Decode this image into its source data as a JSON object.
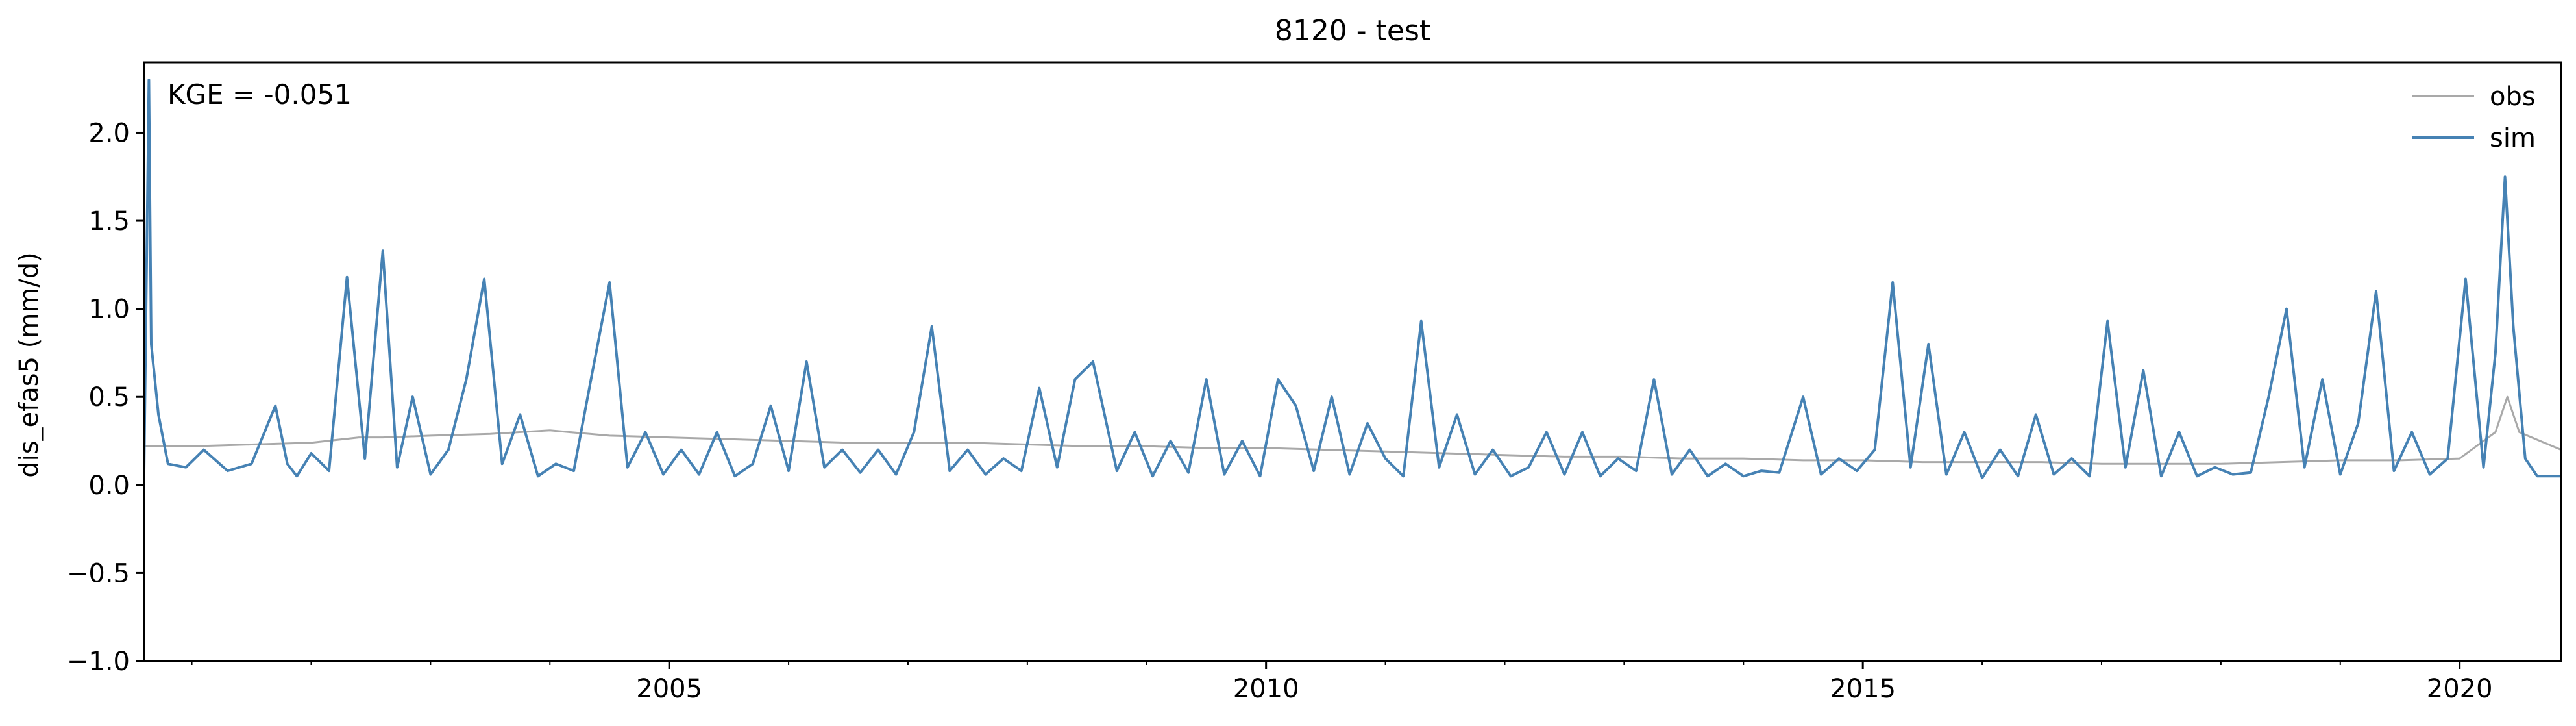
{
  "chart_data": {
    "type": "line",
    "title": "8120 - test",
    "xlabel": "",
    "ylabel": "dis_efas5 (mm/d)",
    "xlim": [
      2000.6,
      2020.85
    ],
    "ylim": [
      -1.0,
      2.4
    ],
    "x_ticks": [
      2005,
      2010,
      2015,
      2020
    ],
    "y_ticks": [
      -1.0,
      -0.5,
      0.0,
      0.5,
      1.0,
      1.5,
      2.0
    ],
    "y_tick_labels": [
      "−1.0",
      "−0.5",
      "0.0",
      "0.5",
      "1.0",
      "1.5",
      "2.0"
    ],
    "annotation": "KGE = -0.051",
    "legend": {
      "position": "top-right"
    },
    "grid": false,
    "series": [
      {
        "name": "obs",
        "color": "#a9a9a9",
        "x": [
          2000.6,
          2001.0,
          2001.5,
          2002.0,
          2002.4,
          2002.6,
          2003.0,
          2003.5,
          2004.0,
          2004.5,
          2005.0,
          2005.5,
          2006.0,
          2006.5,
          2007.0,
          2007.5,
          2008.0,
          2008.5,
          2009.0,
          2009.5,
          2010.0,
          2010.5,
          2011.0,
          2011.5,
          2012.0,
          2012.5,
          2013.0,
          2013.5,
          2014.0,
          2014.5,
          2015.0,
          2015.5,
          2016.0,
          2016.5,
          2017.0,
          2017.5,
          2018.0,
          2018.5,
          2019.0,
          2019.5,
          2020.0,
          2020.3,
          2020.4,
          2020.5,
          2020.85
        ],
        "values": [
          0.22,
          0.22,
          0.23,
          0.24,
          0.27,
          0.27,
          0.28,
          0.29,
          0.31,
          0.28,
          0.27,
          0.26,
          0.25,
          0.24,
          0.24,
          0.24,
          0.23,
          0.22,
          0.22,
          0.21,
          0.21,
          0.2,
          0.19,
          0.18,
          0.17,
          0.16,
          0.16,
          0.15,
          0.15,
          0.14,
          0.14,
          0.13,
          0.13,
          0.13,
          0.12,
          0.12,
          0.12,
          0.13,
          0.14,
          0.14,
          0.15,
          0.3,
          0.5,
          0.3,
          0.2
        ]
      },
      {
        "name": "sim",
        "color": "#4682b4",
        "x": [
          2000.6,
          2000.64,
          2000.66,
          2000.72,
          2000.8,
          2000.95,
          2001.1,
          2001.3,
          2001.5,
          2001.7,
          2001.8,
          2001.88,
          2002.0,
          2002.15,
          2002.3,
          2002.45,
          2002.6,
          2002.72,
          2002.85,
          2003.0,
          2003.15,
          2003.3,
          2003.45,
          2003.6,
          2003.75,
          2003.9,
          2004.05,
          2004.2,
          2004.35,
          2004.5,
          2004.65,
          2004.8,
          2004.95,
          2005.1,
          2005.25,
          2005.4,
          2005.55,
          2005.7,
          2005.85,
          2006.0,
          2006.15,
          2006.3,
          2006.45,
          2006.6,
          2006.75,
          2006.9,
          2007.05,
          2007.2,
          2007.35,
          2007.5,
          2007.65,
          2007.8,
          2007.95,
          2008.1,
          2008.25,
          2008.4,
          2008.55,
          2008.75,
          2008.9,
          2009.05,
          2009.2,
          2009.35,
          2009.5,
          2009.65,
          2009.8,
          2009.95,
          2010.1,
          2010.25,
          2010.4,
          2010.55,
          2010.7,
          2010.85,
          2011.0,
          2011.15,
          2011.3,
          2011.45,
          2011.6,
          2011.75,
          2011.9,
          2012.05,
          2012.2,
          2012.35,
          2012.5,
          2012.65,
          2012.8,
          2012.95,
          2013.1,
          2013.25,
          2013.4,
          2013.55,
          2013.7,
          2013.85,
          2014.0,
          2014.15,
          2014.3,
          2014.5,
          2014.65,
          2014.8,
          2014.95,
          2015.1,
          2015.25,
          2015.4,
          2015.55,
          2015.7,
          2015.85,
          2016.0,
          2016.15,
          2016.3,
          2016.45,
          2016.6,
          2016.75,
          2016.9,
          2017.05,
          2017.2,
          2017.35,
          2017.5,
          2017.65,
          2017.8,
          2017.95,
          2018.1,
          2018.25,
          2018.4,
          2018.55,
          2018.7,
          2018.85,
          2019.0,
          2019.15,
          2019.3,
          2019.45,
          2019.6,
          2019.75,
          2019.9,
          2020.05,
          2020.2,
          2020.3,
          2020.38,
          2020.45,
          2020.55,
          2020.65,
          2020.75,
          2020.85
        ],
        "values": [
          0.08,
          2.3,
          0.8,
          0.4,
          0.12,
          0.1,
          0.2,
          0.08,
          0.12,
          0.45,
          0.12,
          0.05,
          0.18,
          0.08,
          1.18,
          0.15,
          1.33,
          0.1,
          0.5,
          0.06,
          0.2,
          0.6,
          1.17,
          0.12,
          0.4,
          0.05,
          0.12,
          0.08,
          0.62,
          1.15,
          0.1,
          0.3,
          0.06,
          0.2,
          0.06,
          0.3,
          0.05,
          0.12,
          0.45,
          0.08,
          0.7,
          0.1,
          0.2,
          0.07,
          0.2,
          0.06,
          0.3,
          0.9,
          0.08,
          0.2,
          0.06,
          0.15,
          0.08,
          0.55,
          0.1,
          0.6,
          0.7,
          0.08,
          0.3,
          0.05,
          0.25,
          0.07,
          0.6,
          0.06,
          0.25,
          0.05,
          0.6,
          0.45,
          0.08,
          0.5,
          0.06,
          0.35,
          0.15,
          0.05,
          0.93,
          0.1,
          0.4,
          0.06,
          0.2,
          0.05,
          0.1,
          0.3,
          0.06,
          0.3,
          0.05,
          0.15,
          0.08,
          0.6,
          0.06,
          0.2,
          0.05,
          0.12,
          0.05,
          0.08,
          0.07,
          0.5,
          0.06,
          0.15,
          0.08,
          0.2,
          1.15,
          0.1,
          0.8,
          0.06,
          0.3,
          0.04,
          0.2,
          0.05,
          0.4,
          0.06,
          0.15,
          0.05,
          0.93,
          0.1,
          0.65,
          0.05,
          0.3,
          0.05,
          0.1,
          0.06,
          0.07,
          0.5,
          1.0,
          0.1,
          0.6,
          0.06,
          0.35,
          1.1,
          0.08,
          0.3,
          0.06,
          0.15,
          1.17,
          0.1,
          0.75,
          1.75,
          0.9,
          0.15,
          0.05,
          0.05,
          0.05
        ]
      }
    ]
  }
}
